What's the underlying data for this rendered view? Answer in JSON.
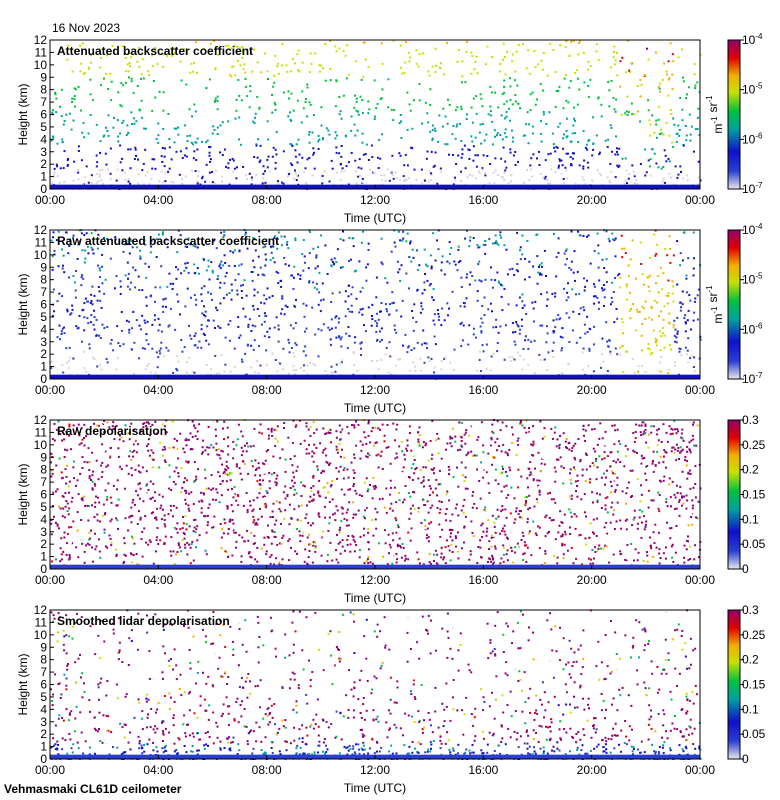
{
  "header": {
    "date": "16 Nov 2023"
  },
  "footer": {
    "instrument": "Vehmasmaki CL61D ceilometer"
  },
  "palette": {
    "stops": [
      "#e8e8ee",
      "#2a3fd0",
      "#1010c8",
      "#00a0a0",
      "#00c040",
      "#c8e000",
      "#f0b000",
      "#e00000",
      "#900070"
    ],
    "ground_gray": "#d6d6d6"
  },
  "chart_data": [
    {
      "type": "heatmap",
      "title": "Attenuated backscatter coefficient",
      "xlabel": "Time (UTC)",
      "ylabel": "Height (km)",
      "x_ticks": [
        "00:00",
        "04:00",
        "08:00",
        "12:00",
        "16:00",
        "20:00",
        "00:00"
      ],
      "xlim_hours": [
        0,
        24
      ],
      "ylim": [
        0,
        12
      ],
      "y_ticks": [
        0,
        1,
        2,
        3,
        4,
        5,
        6,
        7,
        8,
        9,
        10,
        11,
        12
      ],
      "colorbar": {
        "scale": "log",
        "range": [
          1e-07,
          0.0001
        ],
        "ticks": [
          {
            "value": 1e-07,
            "label": "10",
            "exp": "-7"
          },
          {
            "value": 1e-06,
            "label": "10",
            "exp": "-6"
          },
          {
            "value": 1e-05,
            "label": "10",
            "exp": "-5"
          },
          {
            "value": 0.0001,
            "label": "10",
            "exp": "-4"
          }
        ],
        "unit": "m-1 sr-1"
      }
    },
    {
      "type": "heatmap",
      "title": "Raw attenuated backscatter coefficient",
      "xlabel": "Time (UTC)",
      "ylabel": "Height (km)",
      "x_ticks": [
        "00:00",
        "04:00",
        "08:00",
        "12:00",
        "16:00",
        "20:00",
        "00:00"
      ],
      "xlim_hours": [
        0,
        24
      ],
      "ylim": [
        0,
        12
      ],
      "y_ticks": [
        0,
        1,
        2,
        3,
        4,
        5,
        6,
        7,
        8,
        9,
        10,
        11,
        12
      ],
      "colorbar": {
        "scale": "log",
        "range": [
          1e-07,
          0.0001
        ],
        "ticks": [
          {
            "value": 1e-07,
            "label": "10",
            "exp": "-7"
          },
          {
            "value": 1e-06,
            "label": "10",
            "exp": "-6"
          },
          {
            "value": 1e-05,
            "label": "10",
            "exp": "-5"
          },
          {
            "value": 0.0001,
            "label": "10",
            "exp": "-4"
          }
        ],
        "unit": "m-1 sr-1"
      }
    },
    {
      "type": "heatmap",
      "title": "Raw depolarisation",
      "xlabel": "Time (UTC)",
      "ylabel": "Height (km)",
      "x_ticks": [
        "00:00",
        "04:00",
        "08:00",
        "12:00",
        "16:00",
        "20:00",
        "00:00"
      ],
      "xlim_hours": [
        0,
        24
      ],
      "ylim": [
        0,
        12
      ],
      "y_ticks": [
        0,
        1,
        2,
        3,
        4,
        5,
        6,
        7,
        8,
        9,
        10,
        11,
        12
      ],
      "colorbar": {
        "scale": "linear",
        "range": [
          0,
          0.3
        ],
        "ticks": [
          {
            "value": 0,
            "label": "0"
          },
          {
            "value": 0.05,
            "label": "0.05"
          },
          {
            "value": 0.1,
            "label": "0.1"
          },
          {
            "value": 0.15,
            "label": "0.15"
          },
          {
            "value": 0.2,
            "label": "0.2"
          },
          {
            "value": 0.25,
            "label": "0.25"
          },
          {
            "value": 0.3,
            "label": "0.3"
          }
        ]
      }
    },
    {
      "type": "heatmap",
      "title": "Smoothed lidar depolarisation",
      "xlabel": "Time (UTC)",
      "ylabel": "Height (km)",
      "x_ticks": [
        "00:00",
        "04:00",
        "08:00",
        "12:00",
        "16:00",
        "20:00",
        "00:00"
      ],
      "xlim_hours": [
        0,
        24
      ],
      "ylim": [
        0,
        12
      ],
      "y_ticks": [
        0,
        1,
        2,
        3,
        4,
        5,
        6,
        7,
        8,
        9,
        10,
        11,
        12
      ],
      "colorbar": {
        "scale": "linear",
        "range": [
          0,
          0.3
        ],
        "ticks": [
          {
            "value": 0,
            "label": "0"
          },
          {
            "value": 0.05,
            "label": "0.05"
          },
          {
            "value": 0.1,
            "label": "0.1"
          },
          {
            "value": 0.15,
            "label": "0.15"
          },
          {
            "value": 0.2,
            "label": "0.2"
          },
          {
            "value": 0.25,
            "label": "0.25"
          },
          {
            "value": 0.3,
            "label": "0.3"
          }
        ]
      }
    }
  ]
}
